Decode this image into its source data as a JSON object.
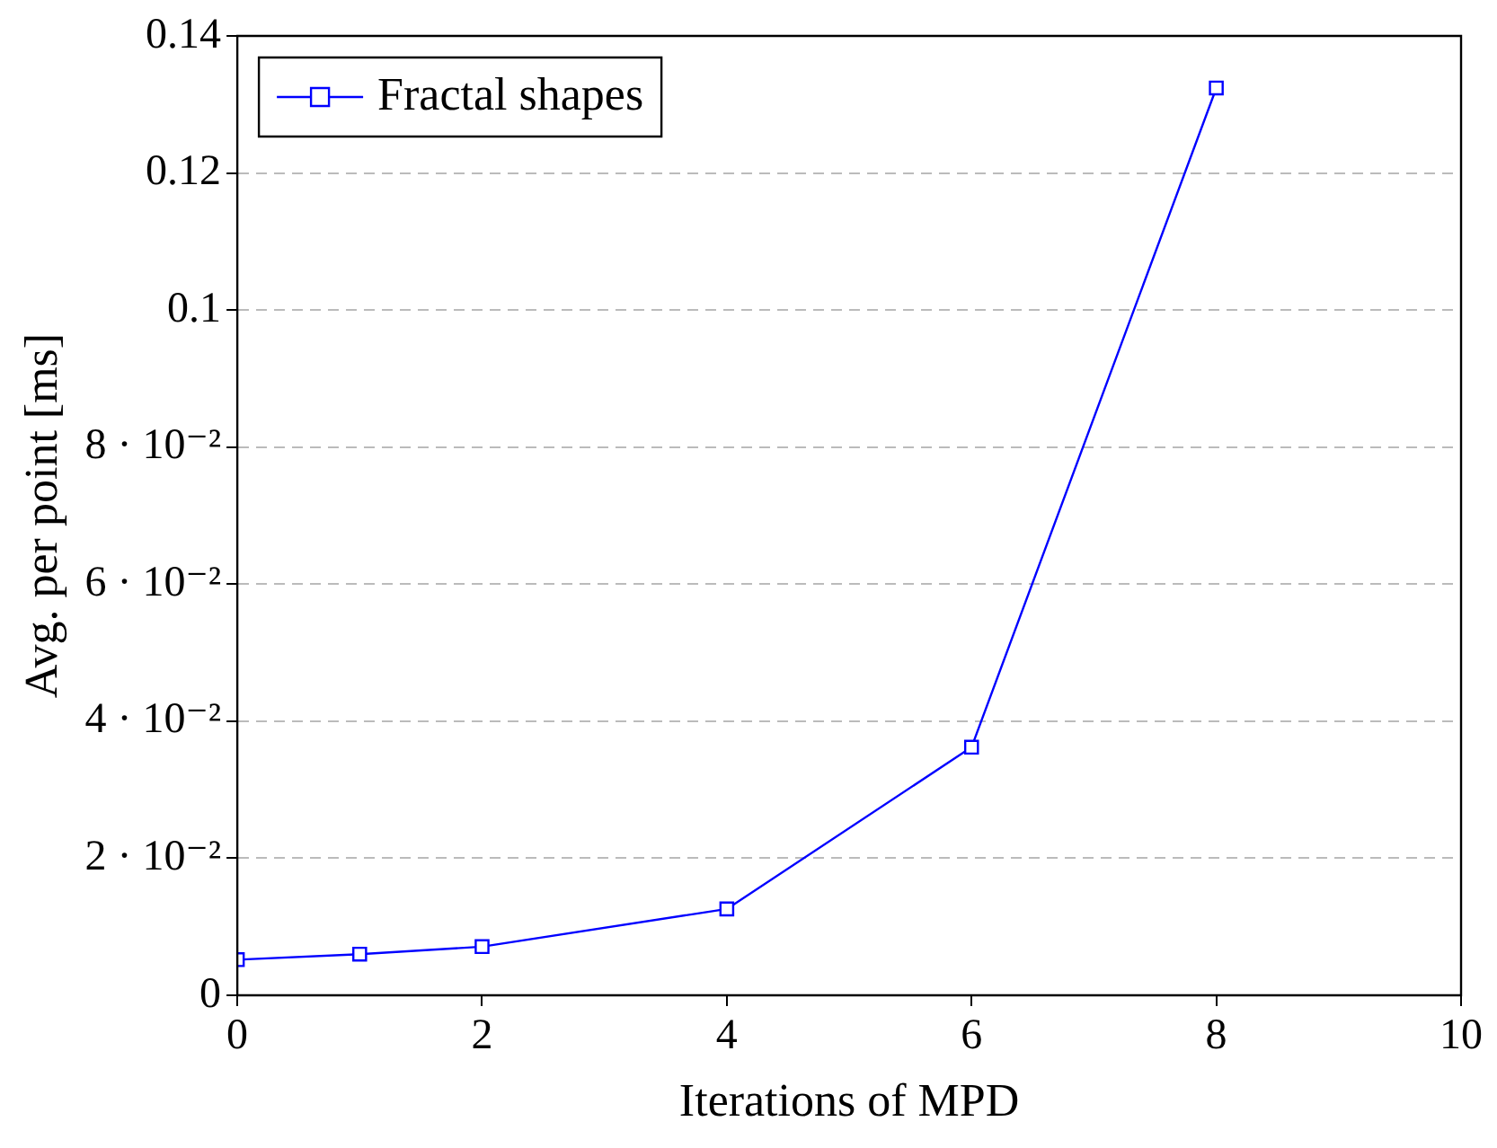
{
  "chart_data": {
    "type": "line",
    "xlabel": "Iterations of MPD",
    "ylabel": "Avg. per point [ms]",
    "x": [
      0,
      1,
      2,
      4,
      6,
      8
    ],
    "series": [
      {
        "name": "Fractal shapes",
        "color": "#0000ff",
        "values": [
          0.0052,
          0.006,
          0.0071,
          0.0126,
          0.0362,
          0.1324
        ]
      }
    ],
    "xlim": [
      0,
      10
    ],
    "xticks": [
      0,
      2,
      4,
      6,
      8,
      10
    ],
    "ylim": [
      0,
      0.14
    ],
    "yticks": [
      0,
      {
        "value": 0.02,
        "label": "2 · 10⁻²"
      },
      {
        "value": 0.04,
        "label": "4 · 10⁻²"
      },
      {
        "value": 0.06,
        "label": "6 · 10⁻²"
      },
      {
        "value": 0.08,
        "label": "8 · 10⁻²"
      },
      0.1,
      0.12,
      0.14
    ],
    "grid": "y",
    "legend": "top left",
    "marker": "square",
    "line_style": "solid"
  }
}
